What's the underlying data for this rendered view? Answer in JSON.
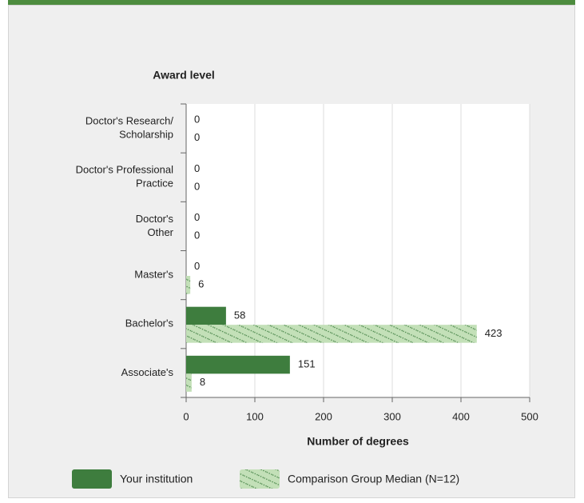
{
  "chart_data": {
    "type": "hbar",
    "title": "Award level",
    "xlabel": "Number of degrees",
    "categories": [
      [
        "Doctor's Research/",
        "Scholarship"
      ],
      [
        "Doctor's Professional",
        "Practice"
      ],
      [
        "Doctor's",
        "Other"
      ],
      [
        "Master's"
      ],
      [
        "Bachelor's"
      ],
      [
        "Associate's"
      ]
    ],
    "series": [
      {
        "name": "Your institution",
        "color": "#3e7d3e",
        "values": [
          0,
          0,
          0,
          0,
          58,
          151
        ]
      },
      {
        "name": "Comparison Group Median (N=12)",
        "color": "#c3e0b8",
        "hatch": true,
        "values": [
          0,
          0,
          0,
          6,
          423,
          8
        ]
      }
    ],
    "xlim": [
      0,
      500
    ],
    "xticks": [
      0,
      100,
      200,
      300,
      400,
      500
    ],
    "grid": true
  }
}
